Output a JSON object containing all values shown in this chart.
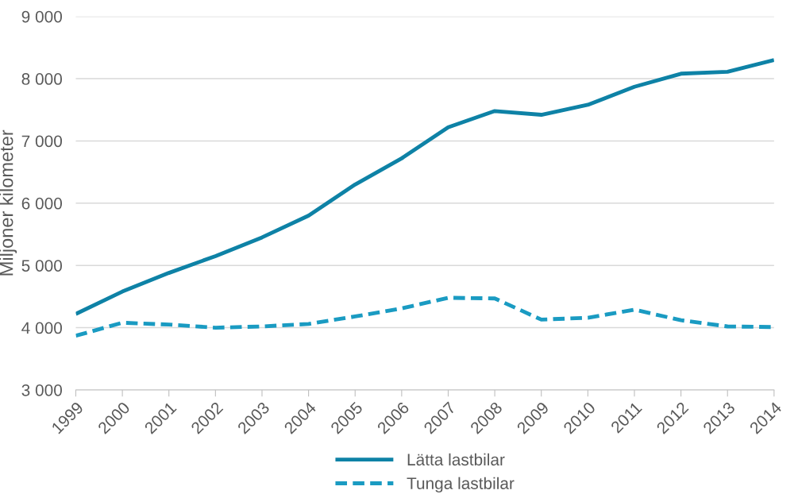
{
  "chart_data": {
    "type": "line",
    "ylabel": "Miljoner kilometer",
    "categories": [
      "1999",
      "2000",
      "2001",
      "2002",
      "2003",
      "2004",
      "2005",
      "2006",
      "2007",
      "2008",
      "2009",
      "2010",
      "2011",
      "2012",
      "2013",
      "2014"
    ],
    "series": [
      {
        "name": "Lätta lastbilar",
        "color": "#0e82a6",
        "line_style": "solid",
        "values": [
          4220,
          4580,
          4880,
          5150,
          5450,
          5800,
          6300,
          6720,
          7220,
          7480,
          7420,
          7580,
          7870,
          8080,
          8110,
          8300
        ]
      },
      {
        "name": "Tunga lastbilar",
        "color": "#1a9bc2",
        "line_style": "dashed",
        "values": [
          3870,
          4080,
          4050,
          4000,
          4020,
          4060,
          4180,
          4310,
          4480,
          4470,
          4130,
          4160,
          4290,
          4120,
          4020,
          4010
        ]
      }
    ],
    "ylim": [
      3000,
      9000
    ],
    "yticks": [
      {
        "value": 3000,
        "label": "3 000"
      },
      {
        "value": 4000,
        "label": "4 000"
      },
      {
        "value": 5000,
        "label": "5 000"
      },
      {
        "value": 6000,
        "label": "6 000"
      },
      {
        "value": 7000,
        "label": "7 000"
      },
      {
        "value": 8000,
        "label": "8 000"
      },
      {
        "value": 9000,
        "label": "9 000"
      }
    ],
    "grid": "y",
    "legend": "bottom",
    "marker": "none"
  }
}
